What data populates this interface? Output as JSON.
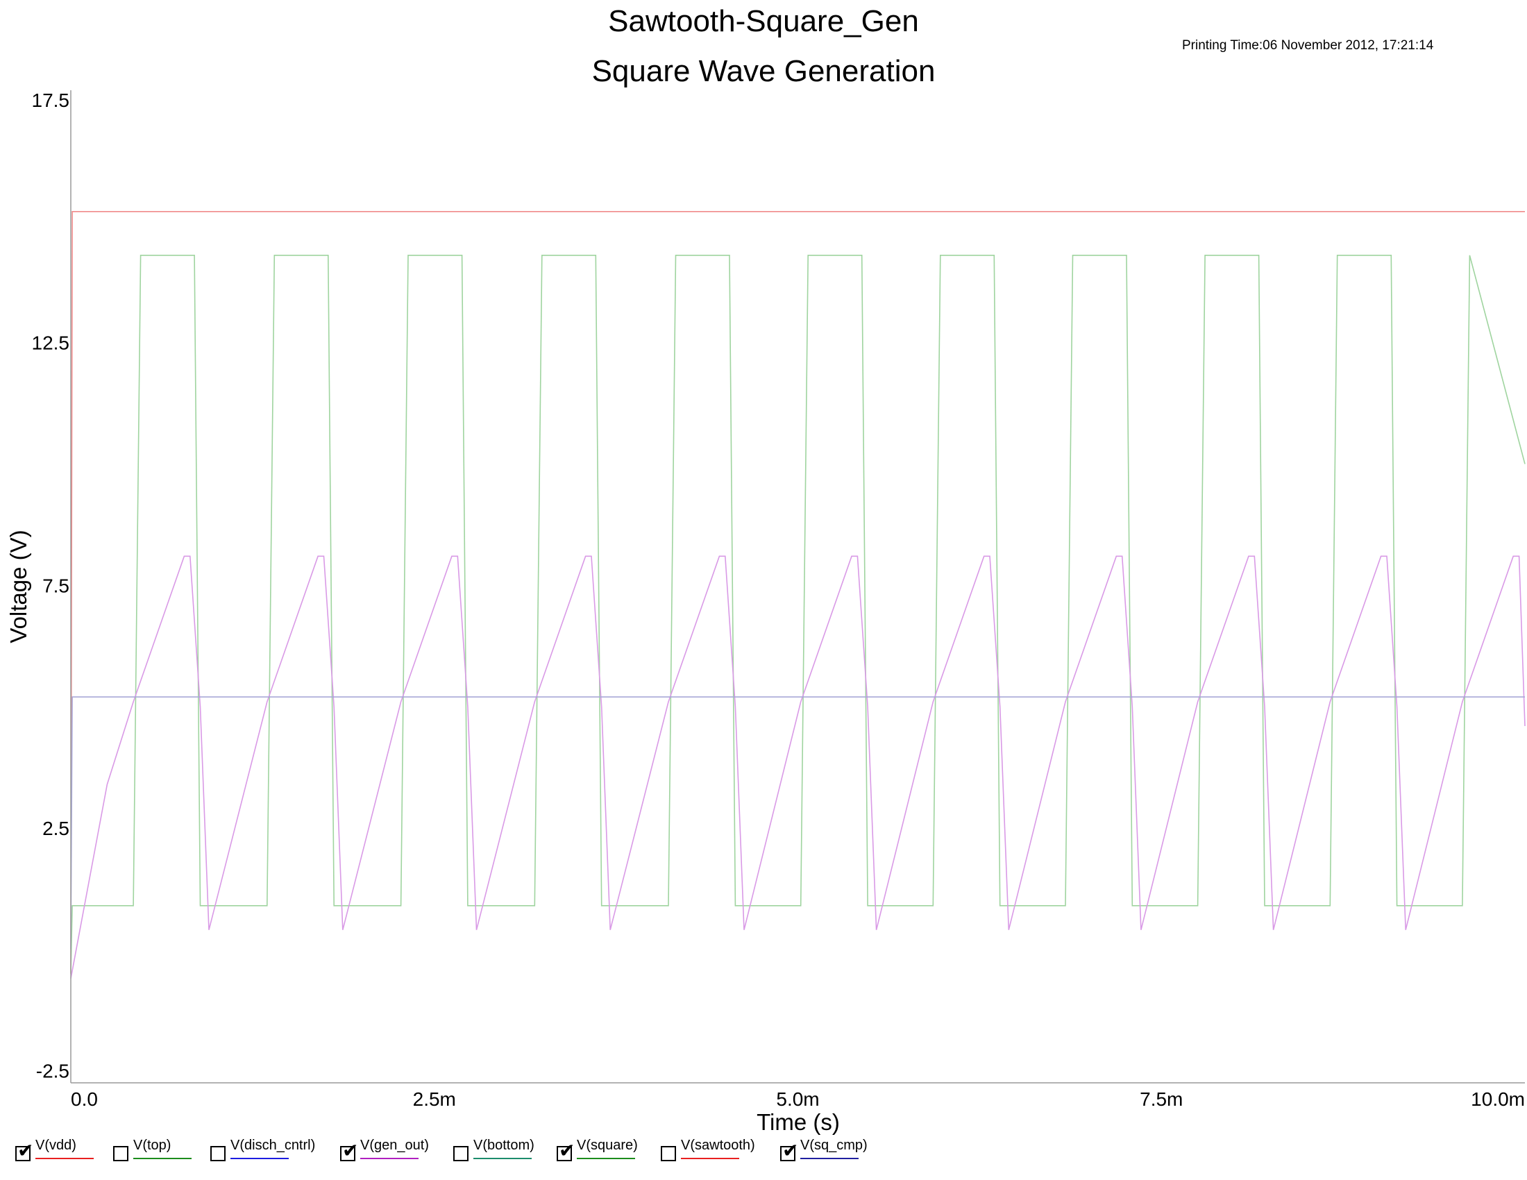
{
  "header": {
    "title": "Sawtooth-Square_Gen",
    "subtitle": "Square Wave Generation",
    "printing_time": "Printing Time:06 November 2012, 17:21:14"
  },
  "chart_data": {
    "type": "line",
    "title": "Square Wave Generation",
    "xlabel": "Time (s)",
    "ylabel": "Voltage (V)",
    "xlim": [
      0,
      0.01
    ],
    "ylim": [
      -2.75,
      17.7
    ],
    "x_ticks": [
      0,
      0.0025,
      0.005,
      0.0075,
      0.01
    ],
    "x_tick_labels": [
      "0.0",
      "2.5m",
      "5.0m",
      "7.5m",
      "10.0m"
    ],
    "y_ticks": [
      -2.5,
      2.5,
      7.5,
      12.5,
      17.5
    ],
    "y_tick_labels": [
      "-2.5",
      "2.5",
      "7.5",
      "12.5",
      "17.5"
    ],
    "grid": false,
    "series": [
      {
        "name": "V(vdd)",
        "color": "#f08a8a",
        "x": [
          0,
          1e-05,
          0.01
        ],
        "y": [
          -0.5,
          15.2,
          15.2
        ]
      },
      {
        "name": "V(square)",
        "color": "#9fd49f",
        "x": [
          0,
          1e-05,
          0.00043,
          0.00048,
          0.00085,
          0.00089,
          0.00135,
          0.0014,
          0.00177,
          0.00181,
          0.00227,
          0.00232,
          0.00269,
          0.00273,
          0.00319,
          0.00324,
          0.00361,
          0.00365,
          0.00411,
          0.00416,
          0.00453,
          0.00457,
          0.00502,
          0.00507,
          0.00544,
          0.00548,
          0.00593,
          0.00598,
          0.00635,
          0.00639,
          0.00684,
          0.00689,
          0.00726,
          0.0073,
          0.00775,
          0.0078,
          0.00817,
          0.00821,
          0.00866,
          0.00871,
          0.00908,
          0.00912,
          0.00957,
          0.00962,
          0.01
        ],
        "y": [
          -0.5,
          0.9,
          0.9,
          14.3,
          14.3,
          0.9,
          0.9,
          14.3,
          14.3,
          0.9,
          0.9,
          14.3,
          14.3,
          0.9,
          0.9,
          14.3,
          14.3,
          0.9,
          0.9,
          14.3,
          14.3,
          0.9,
          0.9,
          14.3,
          14.3,
          0.9,
          0.9,
          14.3,
          14.3,
          0.9,
          0.9,
          14.3,
          14.3,
          0.9,
          0.9,
          14.3,
          14.3,
          0.9,
          0.9,
          14.3,
          14.3,
          0.9,
          0.9,
          14.3,
          10.0
        ]
      },
      {
        "name": "V(gen_out)",
        "color": "#d99ae6",
        "x": [
          0,
          0.00025,
          0.00043,
          0.00078,
          0.00082,
          0.00089,
          0.00095,
          0.00135,
          0.0017,
          0.00174,
          0.00181,
          0.00187,
          0.00227,
          0.00262,
          0.00266,
          0.00273,
          0.00279,
          0.00319,
          0.00354,
          0.00358,
          0.00365,
          0.00371,
          0.00411,
          0.00446,
          0.0045,
          0.00457,
          0.00463,
          0.00502,
          0.00537,
          0.00541,
          0.00548,
          0.00554,
          0.00593,
          0.00628,
          0.00632,
          0.00639,
          0.00645,
          0.00684,
          0.00719,
          0.00723,
          0.0073,
          0.00736,
          0.00775,
          0.0081,
          0.00814,
          0.00821,
          0.00827,
          0.00866,
          0.00901,
          0.00905,
          0.00912,
          0.00918,
          0.00957,
          0.00992,
          0.00996,
          0.01
        ],
        "y": [
          -0.6,
          3.4,
          5.1,
          8.1,
          8.1,
          5.0,
          0.4,
          5.1,
          8.1,
          8.1,
          5.0,
          0.4,
          5.1,
          8.1,
          8.1,
          5.0,
          0.4,
          5.1,
          8.1,
          8.1,
          5.0,
          0.4,
          5.1,
          8.1,
          8.1,
          5.0,
          0.4,
          5.1,
          8.1,
          8.1,
          5.0,
          0.4,
          5.1,
          8.1,
          8.1,
          5.0,
          0.4,
          5.1,
          8.1,
          8.1,
          5.0,
          0.4,
          5.1,
          8.1,
          8.1,
          5.0,
          0.4,
          5.1,
          8.1,
          8.1,
          5.0,
          0.4,
          5.1,
          8.1,
          8.1,
          4.6
        ]
      },
      {
        "name": "V(sq_cmp)",
        "color": "#a8a8d8",
        "x": [
          0,
          1e-05,
          0.01
        ],
        "y": [
          0,
          5.2,
          5.2
        ]
      }
    ],
    "legend": {
      "placement": "bottom",
      "items": [
        {
          "label": "V(vdd)",
          "color": "#e82020",
          "checked": true
        },
        {
          "label": "V(top)",
          "color": "#1c8c1c",
          "checked": false
        },
        {
          "label": "V(disch_cntrl)",
          "color": "#1c1ce0",
          "checked": false
        },
        {
          "label": "V(gen_out)",
          "color": "#b020c0",
          "checked": true
        },
        {
          "label": "V(bottom)",
          "color": "#1c8c6c",
          "checked": false
        },
        {
          "label": "V(square)",
          "color": "#1c8c1c",
          "checked": true
        },
        {
          "label": "V(sawtooth)",
          "color": "#e82020",
          "checked": false
        },
        {
          "label": "V(sq_cmp)",
          "color": "#2020a0",
          "checked": true
        }
      ]
    }
  }
}
